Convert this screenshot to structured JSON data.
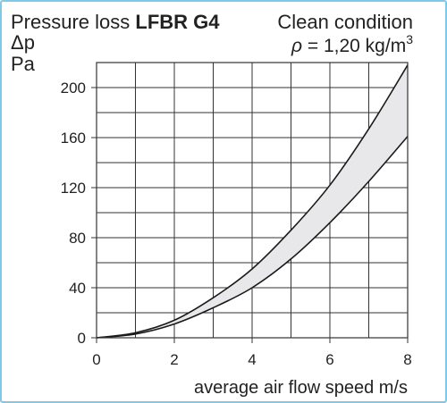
{
  "header": {
    "title_plain": "Pressure loss ",
    "title_bold": "LFBR G4",
    "condition": "Clean condition",
    "density_symbol": "ρ",
    "density_text": " = 1,20 kg/m",
    "density_exp": "3"
  },
  "chart_data": {
    "type": "area",
    "title": "Pressure loss LFBR G4",
    "subtitle": "Clean condition ρ = 1,20 kg/m3",
    "xlabel": "average air flow speed m/s",
    "ylabel": "Δp",
    "yunit": "Pa",
    "xlim": [
      0,
      8
    ],
    "ylim": [
      0,
      220
    ],
    "x_ticks": [
      0,
      2,
      4,
      6,
      8
    ],
    "y_ticks": [
      0,
      40,
      80,
      120,
      160,
      200
    ],
    "grid": true,
    "band": {
      "x": [
        0,
        1,
        2,
        3,
        4,
        5,
        6,
        7,
        8
      ],
      "upper": [
        0,
        4,
        14,
        32,
        55,
        86,
        122,
        167,
        218
      ],
      "lower": [
        0,
        3,
        11,
        24,
        40,
        63,
        92,
        125,
        161
      ]
    },
    "colors": {
      "band_fill": "#e8e8ea",
      "curve": "#1a1a1a",
      "grid": "#333333",
      "frame_border": "#7fc8e8"
    }
  }
}
